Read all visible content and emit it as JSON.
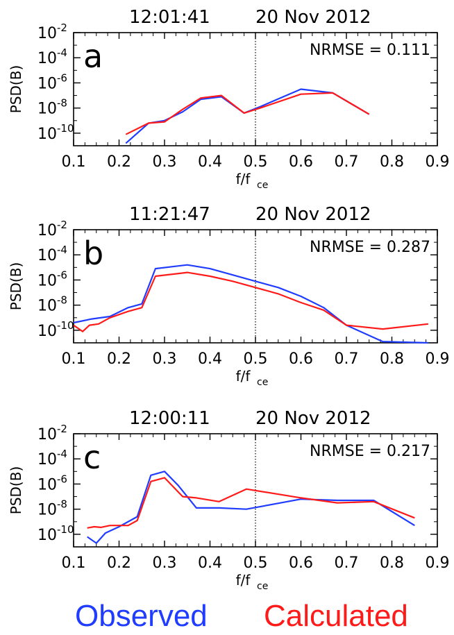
{
  "colors": {
    "observed": "#1f3cff",
    "calculated": "#ff1a1a",
    "axis": "#000000",
    "refline": "#000000"
  },
  "legend": {
    "observed": "Observed",
    "calculated": "Calculated"
  },
  "chart_data": [
    {
      "type": "line",
      "panel_letter": "a",
      "title_time": "12:01:41",
      "title_date": "20 Nov 2012",
      "annotation": "NRMSE = 0.111",
      "ylabel": "PSD(B)",
      "xlabel_main": "f/f",
      "xlabel_sub": "ce",
      "xlim": [
        0.1,
        0.9
      ],
      "ylim_log10": [
        -11,
        -2
      ],
      "x_ticks": [
        "0.1",
        "0.2",
        "0.3",
        "0.4",
        "0.5",
        "0.6",
        "0.7",
        "0.8",
        "0.9"
      ],
      "y_tick_exponents": [
        "-2",
        "-4",
        "-6",
        "-8",
        "-10"
      ],
      "y_tick_base": "10",
      "vertical_line_x": 0.5,
      "series": [
        {
          "name": "Observed",
          "x": [
            0.215,
            0.265,
            0.3,
            0.34,
            0.38,
            0.425,
            0.475,
            0.51,
            0.6,
            0.67,
            0.75
          ],
          "y_log10": [
            -10.8,
            -9.2,
            -9.0,
            -8.3,
            -7.3,
            -7.1,
            -8.4,
            -7.9,
            -6.5,
            -6.8,
            -8.5
          ]
        },
        {
          "name": "Calculated",
          "x": [
            0.215,
            0.265,
            0.3,
            0.34,
            0.38,
            0.425,
            0.475,
            0.51,
            0.6,
            0.67,
            0.75
          ],
          "y_log10": [
            -10.1,
            -9.2,
            -9.1,
            -8.1,
            -7.2,
            -7.0,
            -8.4,
            -8.0,
            -6.9,
            -6.8,
            -8.5
          ]
        }
      ]
    },
    {
      "type": "line",
      "panel_letter": "b",
      "title_time": "11:21:47",
      "title_date": "20 Nov 2012",
      "annotation": "NRMSE = 0.287",
      "ylabel": "PSD(B)",
      "xlabel_main": "f/f",
      "xlabel_sub": "ce",
      "xlim": [
        0.1,
        0.9
      ],
      "ylim_log10": [
        -11,
        -2
      ],
      "x_ticks": [
        "0.1",
        "0.2",
        "0.3",
        "0.4",
        "0.5",
        "0.6",
        "0.7",
        "0.8",
        "0.9"
      ],
      "y_tick_exponents": [
        "-2",
        "-4",
        "-6",
        "-8",
        "-10"
      ],
      "y_tick_base": "10",
      "vertical_line_x": 0.5,
      "series": [
        {
          "name": "Observed",
          "x": [
            0.1,
            0.14,
            0.18,
            0.22,
            0.25,
            0.28,
            0.35,
            0.4,
            0.45,
            0.5,
            0.55,
            0.6,
            0.65,
            0.7,
            0.78,
            0.88
          ],
          "y_log10": [
            -9.4,
            -9.1,
            -8.9,
            -8.2,
            -7.9,
            -5.1,
            -4.8,
            -5.1,
            -5.6,
            -6.1,
            -6.6,
            -7.3,
            -8.2,
            -9.6,
            -10.9,
            -11.0
          ]
        },
        {
          "name": "Calculated",
          "x": [
            0.1,
            0.12,
            0.135,
            0.155,
            0.18,
            0.22,
            0.25,
            0.28,
            0.35,
            0.4,
            0.45,
            0.5,
            0.55,
            0.6,
            0.65,
            0.7,
            0.78,
            0.88
          ],
          "y_log10": [
            -9.6,
            -10.1,
            -9.6,
            -9.5,
            -9.0,
            -8.5,
            -8.2,
            -5.7,
            -5.4,
            -5.7,
            -6.1,
            -6.6,
            -7.1,
            -7.8,
            -8.4,
            -9.6,
            -9.9,
            -9.5
          ]
        }
      ]
    },
    {
      "type": "line",
      "panel_letter": "c",
      "title_time": "12:00:11",
      "title_date": "20 Nov 2012",
      "annotation": "NRMSE = 0.217",
      "ylabel": "PSD(B)",
      "xlabel_main": "f/f",
      "xlabel_sub": "ce",
      "xlim": [
        0.1,
        0.9
      ],
      "ylim_log10": [
        -11,
        -2
      ],
      "x_ticks": [
        "0.1",
        "0.2",
        "0.3",
        "0.4",
        "0.5",
        "0.6",
        "0.7",
        "0.8",
        "0.9"
      ],
      "y_tick_exponents": [
        "-2",
        "-4",
        "-6",
        "-8",
        "-10"
      ],
      "y_tick_base": "10",
      "vertical_line_x": 0.5,
      "series": [
        {
          "name": "Observed",
          "x": [
            0.13,
            0.15,
            0.17,
            0.2,
            0.24,
            0.27,
            0.3,
            0.33,
            0.37,
            0.42,
            0.48,
            0.6,
            0.68,
            0.76,
            0.85
          ],
          "y_log10": [
            -10.2,
            -10.7,
            -9.9,
            -9.4,
            -8.6,
            -5.3,
            -5.0,
            -6.1,
            -7.9,
            -7.9,
            -8.0,
            -7.2,
            -7.3,
            -7.3,
            -9.3
          ]
        },
        {
          "name": "Calculated",
          "x": [
            0.13,
            0.145,
            0.16,
            0.18,
            0.22,
            0.24,
            0.27,
            0.3,
            0.34,
            0.37,
            0.42,
            0.48,
            0.6,
            0.68,
            0.76,
            0.85
          ],
          "y_log10": [
            -9.5,
            -9.4,
            -9.45,
            -9.3,
            -9.3,
            -8.9,
            -5.8,
            -5.5,
            -7.0,
            -7.1,
            -7.4,
            -6.4,
            -7.1,
            -7.5,
            -7.4,
            -8.7
          ]
        }
      ]
    }
  ]
}
